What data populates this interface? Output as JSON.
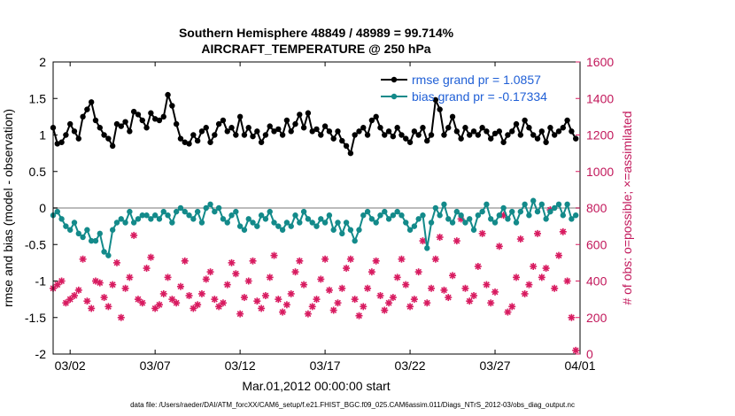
{
  "chart_data": {
    "type": "line",
    "title": "Southern Hemisphere 48849 / 48989 = 99.714%",
    "subtitle": "AIRCRAFT_TEMPERATURE @ 250 hPa",
    "xlabel": "Mar.01,2012 00:00:00 start",
    "ylabel": "rmse and bias (model - observation)",
    "y2label": "# of obs: o=possible; ×=assimilated",
    "footnote": "data file: /Users/raeder/DAI/ATM_forcXX/CAM6_setup/f.e21.FHIST_BGC.f09_025.CAM6assim.011/Diags_NTrS_2012-03/obs_diag_output.nc",
    "x_ticks": [
      "03/02",
      "03/07",
      "03/12",
      "03/17",
      "03/22",
      "03/27",
      "04/01"
    ],
    "x_tick_days": [
      1,
      6,
      11,
      16,
      21,
      26,
      31
    ],
    "xlim": [
      0,
      31
    ],
    "ylim": [
      -2,
      2
    ],
    "y_ticks": [
      "-2",
      "-1.5",
      "-1",
      "-0.5",
      "0",
      "0.5",
      "1",
      "1.5",
      "2"
    ],
    "y2lim": [
      0,
      1600
    ],
    "y2_ticks": [
      "0",
      "200",
      "400",
      "600",
      "800",
      "1000",
      "1200",
      "1400",
      "1600"
    ],
    "grid": false,
    "legend_position": "top-right",
    "zero_line": true,
    "colors": {
      "rmse": "#000000",
      "bias": "#138a8a",
      "obs": "#d81b60",
      "zero": "#bbbbbb",
      "legend_text": "#1f5fd6"
    },
    "series": [
      {
        "name": "rmse grand pr = 1.0857",
        "axis": "left",
        "marker": "filled-circle",
        "x": [
          0,
          0.25,
          0.5,
          0.75,
          1,
          1.25,
          1.5,
          1.75,
          2,
          2.25,
          2.5,
          2.75,
          3,
          3.25,
          3.5,
          3.75,
          4,
          4.25,
          4.5,
          4.75,
          5,
          5.25,
          5.5,
          5.75,
          6,
          6.25,
          6.5,
          6.75,
          7,
          7.25,
          7.5,
          7.75,
          8,
          8.25,
          8.5,
          8.75,
          9,
          9.25,
          9.5,
          9.75,
          10,
          10.25,
          10.5,
          10.75,
          11,
          11.25,
          11.5,
          11.75,
          12,
          12.25,
          12.5,
          12.75,
          13,
          13.25,
          13.5,
          13.75,
          14,
          14.25,
          14.5,
          14.75,
          15,
          15.25,
          15.5,
          15.75,
          16,
          16.25,
          16.5,
          16.75,
          17,
          17.25,
          17.5,
          17.75,
          18,
          18.25,
          18.5,
          18.75,
          19,
          19.25,
          19.5,
          19.75,
          20,
          20.25,
          20.5,
          20.75,
          21,
          21.25,
          21.5,
          21.75,
          22,
          22.25,
          22.5,
          22.75,
          23,
          23.25,
          23.5,
          23.75,
          24,
          24.25,
          24.5,
          24.75,
          25,
          25.25,
          25.5,
          25.75,
          26,
          26.25,
          26.5,
          26.75,
          27,
          27.25,
          27.5,
          27.75,
          28,
          28.25,
          28.5,
          28.75,
          29,
          29.25,
          29.5,
          29.75,
          30,
          30.25,
          30.5,
          30.75
        ],
        "values": [
          1.1,
          0.88,
          0.9,
          1.0,
          1.15,
          1.05,
          0.95,
          1.25,
          1.35,
          1.45,
          1.2,
          1.1,
          1.0,
          0.95,
          0.85,
          1.15,
          1.12,
          1.18,
          1.05,
          1.32,
          1.28,
          1.2,
          1.1,
          1.3,
          1.22,
          1.2,
          1.25,
          1.55,
          1.4,
          1.15,
          0.95,
          0.9,
          0.88,
          1.0,
          0.92,
          1.05,
          1.1,
          0.9,
          1.0,
          1.15,
          1.2,
          1.05,
          1.1,
          1.0,
          1.25,
          1.0,
          1.1,
          0.98,
          1.05,
          0.9,
          1.0,
          1.12,
          1.05,
          1.08,
          1.0,
          1.2,
          1.05,
          1.15,
          1.28,
          1.1,
          1.3,
          1.05,
          1.08,
          1.0,
          1.12,
          1.05,
          0.95,
          1.05,
          0.92,
          0.85,
          0.75,
          1.0,
          1.05,
          1.1,
          1.0,
          1.2,
          1.25,
          1.1,
          1.0,
          1.05,
          0.98,
          1.1,
          1.0,
          0.95,
          0.9,
          1.05,
          1.0,
          1.1,
          0.92,
          1.0,
          1.48,
          1.35,
          1.0,
          1.1,
          1.25,
          1.05,
          0.95,
          1.1,
          1.0,
          1.05,
          1.0,
          1.1,
          1.05,
          0.95,
          1.02,
          1.05,
          0.9,
          1.0,
          1.05,
          1.15,
          1.0,
          1.2,
          1.1,
          1.0,
          0.95,
          1.05,
          0.9,
          1.1,
          1.0,
          1.05,
          1.1,
          1.2,
          1.05,
          0.95
        ]
      },
      {
        "name": "bias grand pr = -0.17334",
        "axis": "left",
        "marker": "filled-circle",
        "x": [
          0,
          0.25,
          0.5,
          0.75,
          1,
          1.25,
          1.5,
          1.75,
          2,
          2.25,
          2.5,
          2.75,
          3,
          3.25,
          3.5,
          3.75,
          4,
          4.25,
          4.5,
          4.75,
          5,
          5.25,
          5.5,
          5.75,
          6,
          6.25,
          6.5,
          6.75,
          7,
          7.25,
          7.5,
          7.75,
          8,
          8.25,
          8.5,
          8.75,
          9,
          9.25,
          9.5,
          9.75,
          10,
          10.25,
          10.5,
          10.75,
          11,
          11.25,
          11.5,
          11.75,
          12,
          12.25,
          12.5,
          12.75,
          13,
          13.25,
          13.5,
          13.75,
          14,
          14.25,
          14.5,
          14.75,
          15,
          15.25,
          15.5,
          15.75,
          16,
          16.25,
          16.5,
          16.75,
          17,
          17.25,
          17.5,
          17.75,
          18,
          18.25,
          18.5,
          18.75,
          19,
          19.25,
          19.5,
          19.75,
          20,
          20.25,
          20.5,
          20.75,
          21,
          21.25,
          21.5,
          21.75,
          22,
          22.25,
          22.5,
          22.75,
          23,
          23.25,
          23.5,
          23.75,
          24,
          24.25,
          24.5,
          24.75,
          25,
          25.25,
          25.5,
          25.75,
          26,
          26.25,
          26.5,
          26.75,
          27,
          27.25,
          27.5,
          27.75,
          28,
          28.25,
          28.5,
          28.75,
          29,
          29.25,
          29.5,
          29.75,
          30,
          30.25,
          30.5,
          30.75
        ],
        "values": [
          -0.1,
          -0.05,
          -0.15,
          -0.25,
          -0.3,
          -0.2,
          -0.35,
          -0.4,
          -0.3,
          -0.45,
          -0.45,
          -0.35,
          -0.6,
          -0.65,
          -0.3,
          -0.2,
          -0.15,
          -0.2,
          -0.05,
          -0.2,
          -0.15,
          -0.1,
          -0.1,
          -0.15,
          -0.1,
          -0.15,
          -0.05,
          -0.1,
          -0.2,
          -0.05,
          0.0,
          -0.05,
          -0.1,
          -0.15,
          -0.05,
          -0.2,
          0.0,
          0.05,
          -0.05,
          0.0,
          -0.15,
          -0.2,
          -0.1,
          -0.05,
          -0.25,
          -0.3,
          -0.15,
          -0.2,
          -0.25,
          -0.1,
          -0.15,
          -0.05,
          -0.2,
          -0.25,
          -0.3,
          -0.2,
          -0.25,
          -0.1,
          -0.2,
          -0.05,
          -0.15,
          -0.2,
          -0.25,
          -0.15,
          -0.2,
          -0.1,
          -0.3,
          -0.2,
          -0.35,
          -0.2,
          -0.3,
          -0.45,
          -0.3,
          -0.1,
          -0.05,
          -0.15,
          -0.2,
          -0.1,
          -0.05,
          -0.15,
          -0.1,
          -0.05,
          -0.1,
          -0.2,
          -0.3,
          -0.25,
          -0.15,
          -0.1,
          -0.55,
          -0.2,
          0.0,
          -0.1,
          0.05,
          -0.15,
          -0.2,
          -0.05,
          -0.1,
          -0.2,
          -0.15,
          -0.3,
          -0.1,
          -0.05,
          0.05,
          -0.15,
          -0.2,
          -0.1,
          0.0,
          -0.15,
          -0.05,
          -0.2,
          -0.05,
          0.05,
          -0.1,
          0.1,
          -0.05,
          0.05,
          -0.15,
          -0.05,
          0.0,
          0.05,
          -0.1,
          0.05,
          -0.15,
          -0.1
        ]
      },
      {
        "name": "",
        "axis": "right",
        "marker": "asterisk",
        "x": [
          0,
          0.25,
          0.5,
          0.75,
          1,
          1.25,
          1.5,
          1.75,
          2,
          2.25,
          2.5,
          2.75,
          3,
          3.25,
          3.5,
          3.75,
          4,
          4.25,
          4.5,
          4.75,
          5,
          5.25,
          5.5,
          5.75,
          6,
          6.25,
          6.5,
          6.75,
          7,
          7.25,
          7.5,
          7.75,
          8,
          8.25,
          8.5,
          8.75,
          9,
          9.25,
          9.5,
          9.75,
          10,
          10.25,
          10.5,
          10.75,
          11,
          11.25,
          11.5,
          11.75,
          12,
          12.25,
          12.5,
          12.75,
          13,
          13.25,
          13.5,
          13.75,
          14,
          14.25,
          14.5,
          14.75,
          15,
          15.25,
          15.5,
          15.75,
          16,
          16.25,
          16.5,
          16.75,
          17,
          17.25,
          17.5,
          17.75,
          18,
          18.25,
          18.5,
          18.75,
          19,
          19.25,
          19.5,
          19.75,
          20,
          20.25,
          20.5,
          20.75,
          21,
          21.25,
          21.5,
          21.75,
          22,
          22.25,
          22.5,
          22.75,
          23,
          23.25,
          23.5,
          23.75,
          24,
          24.25,
          24.5,
          24.75,
          25,
          25.25,
          25.5,
          25.75,
          26,
          26.25,
          26.5,
          26.75,
          27,
          27.25,
          27.5,
          27.75,
          28,
          28.25,
          28.5,
          28.75,
          29,
          29.25,
          29.5,
          29.75,
          30,
          30.25,
          30.5,
          30.75
        ],
        "values": [
          360,
          380,
          400,
          280,
          300,
          320,
          350,
          520,
          290,
          250,
          400,
          390,
          310,
          260,
          380,
          500,
          200,
          360,
          420,
          650,
          300,
          280,
          470,
          530,
          250,
          270,
          330,
          420,
          300,
          280,
          370,
          510,
          320,
          250,
          270,
          330,
          410,
          450,
          300,
          260,
          280,
          380,
          500,
          440,
          220,
          310,
          400,
          510,
          290,
          250,
          320,
          420,
          540,
          300,
          230,
          270,
          330,
          450,
          510,
          380,
          220,
          260,
          300,
          410,
          520,
          350,
          240,
          280,
          360,
          470,
          520,
          300,
          210,
          260,
          360,
          450,
          510,
          320,
          240,
          280,
          310,
          420,
          520,
          380,
          260,
          300,
          450,
          620,
          280,
          360,
          520,
          640,
          350,
          310,
          430,
          620,
          740,
          360,
          290,
          320,
          480,
          660,
          380,
          280,
          340,
          590,
          760,
          230,
          260,
          420,
          630,
          330,
          380,
          480,
          660,
          420,
          470,
          790,
          360,
          540,
          670,
          400,
          200,
          20
        ]
      }
    ]
  }
}
